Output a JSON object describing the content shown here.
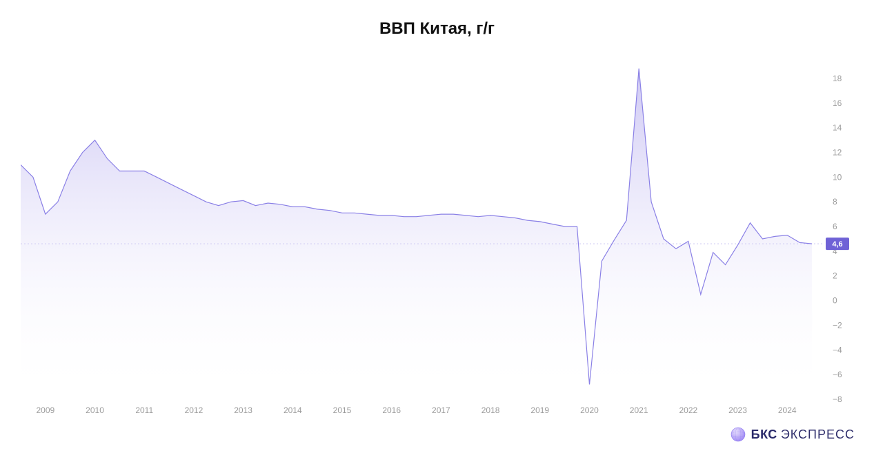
{
  "title": "ВВП Китая, г/г",
  "title_fontsize": 24,
  "title_color": "#111111",
  "branding": {
    "text_bold": "БКС",
    "text_light": "ЭКСПРЕСС",
    "fontsize": 18,
    "color_bold": "#2a2a6a",
    "color_light": "#302f6c",
    "globe_fill": "#b9a7ff",
    "globe_stroke": "#8e7bf0"
  },
  "chart": {
    "type": "area",
    "background_color": "#ffffff",
    "line_color": "#8a80e6",
    "line_width": 1.2,
    "fill_top_color": "#a59aeb",
    "fill_top_opacity": 0.55,
    "fill_bottom_color": "#ffffff",
    "fill_bottom_opacity": 0.0,
    "baseline_color": "#c9c2f2",
    "axis_text_color": "#9b9b9b",
    "axis_fontsize": 12,
    "x_start": 2008.5,
    "x_end": 2024.75,
    "x_tick_start": 2009,
    "x_tick_end": 2024,
    "x_tick_step": 1,
    "y_min": -8,
    "y_max": 19,
    "y_tick_start": -8,
    "y_tick_end": 18,
    "y_tick_step": 2,
    "last_value_badge": {
      "value": "4,6",
      "y": 4.6,
      "bg": "#6f62d6",
      "text_color": "#ffffff",
      "fontsize": 11
    },
    "data": [
      [
        2008.5,
        11.0
      ],
      [
        2008.75,
        10.0
      ],
      [
        2009.0,
        7.0
      ],
      [
        2009.25,
        8.0
      ],
      [
        2009.5,
        10.5
      ],
      [
        2009.75,
        12.0
      ],
      [
        2010.0,
        13.0
      ],
      [
        2010.25,
        11.5
      ],
      [
        2010.5,
        10.5
      ],
      [
        2010.75,
        10.5
      ],
      [
        2011.0,
        10.5
      ],
      [
        2011.25,
        10.0
      ],
      [
        2011.5,
        9.5
      ],
      [
        2011.75,
        9.0
      ],
      [
        2012.0,
        8.5
      ],
      [
        2012.25,
        8.0
      ],
      [
        2012.5,
        7.7
      ],
      [
        2012.75,
        8.0
      ],
      [
        2013.0,
        8.1
      ],
      [
        2013.25,
        7.7
      ],
      [
        2013.5,
        7.9
      ],
      [
        2013.75,
        7.8
      ],
      [
        2014.0,
        7.6
      ],
      [
        2014.25,
        7.6
      ],
      [
        2014.5,
        7.4
      ],
      [
        2014.75,
        7.3
      ],
      [
        2015.0,
        7.1
      ],
      [
        2015.25,
        7.1
      ],
      [
        2015.5,
        7.0
      ],
      [
        2015.75,
        6.9
      ],
      [
        2016.0,
        6.9
      ],
      [
        2016.25,
        6.8
      ],
      [
        2016.5,
        6.8
      ],
      [
        2016.75,
        6.9
      ],
      [
        2017.0,
        7.0
      ],
      [
        2017.25,
        7.0
      ],
      [
        2017.5,
        6.9
      ],
      [
        2017.75,
        6.8
      ],
      [
        2018.0,
        6.9
      ],
      [
        2018.25,
        6.8
      ],
      [
        2018.5,
        6.7
      ],
      [
        2018.75,
        6.5
      ],
      [
        2019.0,
        6.4
      ],
      [
        2019.25,
        6.2
      ],
      [
        2019.5,
        6.0
      ],
      [
        2019.75,
        6.0
      ],
      [
        2020.0,
        -6.8
      ],
      [
        2020.25,
        3.2
      ],
      [
        2020.5,
        4.9
      ],
      [
        2020.75,
        6.5
      ],
      [
        2021.0,
        18.8
      ],
      [
        2021.25,
        8.0
      ],
      [
        2021.5,
        5.0
      ],
      [
        2021.75,
        4.2
      ],
      [
        2022.0,
        4.8
      ],
      [
        2022.25,
        0.5
      ],
      [
        2022.5,
        3.9
      ],
      [
        2022.75,
        2.9
      ],
      [
        2023.0,
        4.5
      ],
      [
        2023.25,
        6.3
      ],
      [
        2023.5,
        5.0
      ],
      [
        2023.75,
        5.2
      ],
      [
        2024.0,
        5.3
      ],
      [
        2024.25,
        4.7
      ],
      [
        2024.5,
        4.6
      ]
    ]
  }
}
